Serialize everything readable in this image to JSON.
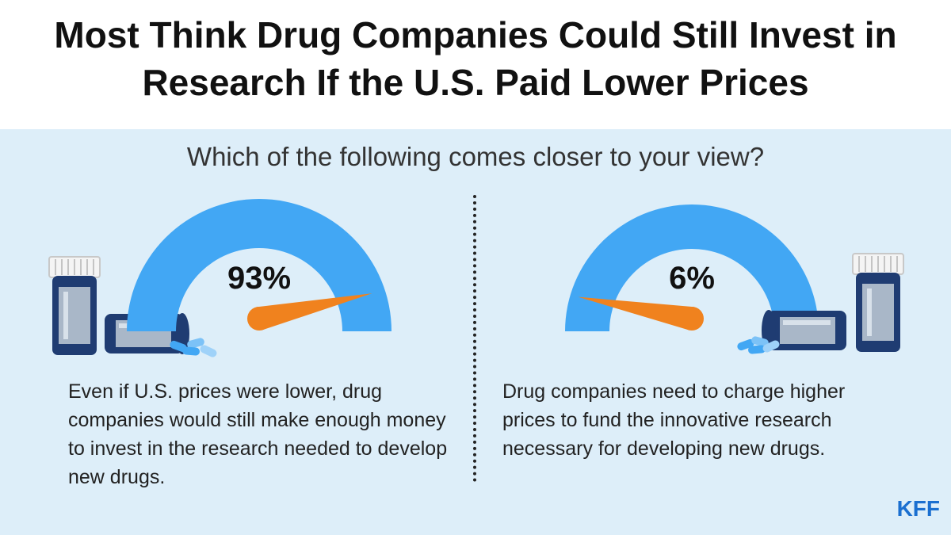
{
  "title_line1": "Most Think Drug Companies Could Still Invest in",
  "title_line2": "Research If the U.S. Paid Lower Prices",
  "question": "Which of the following comes closer to your view?",
  "logo": "KFF",
  "colors": {
    "gauge": "#42a7f4",
    "needle": "#f0821e",
    "background": "#ddeef9",
    "text": "#222222"
  },
  "icons": [
    "pill-bottle-icon",
    "tipped-pill-bottle-icon",
    "pills-icon"
  ],
  "chart_data": [
    {
      "type": "gauge",
      "title": "Even if U.S. prices were lower, drug companies would still make enough money to invest in the research needed to develop new drugs.",
      "value": 93,
      "label": "93%",
      "range": [
        0,
        100
      ]
    },
    {
      "type": "gauge",
      "title": "Drug companies need to charge higher prices to fund the innovative research necessary for developing new drugs.",
      "value": 6,
      "label": "6%",
      "range": [
        0,
        100
      ]
    }
  ]
}
